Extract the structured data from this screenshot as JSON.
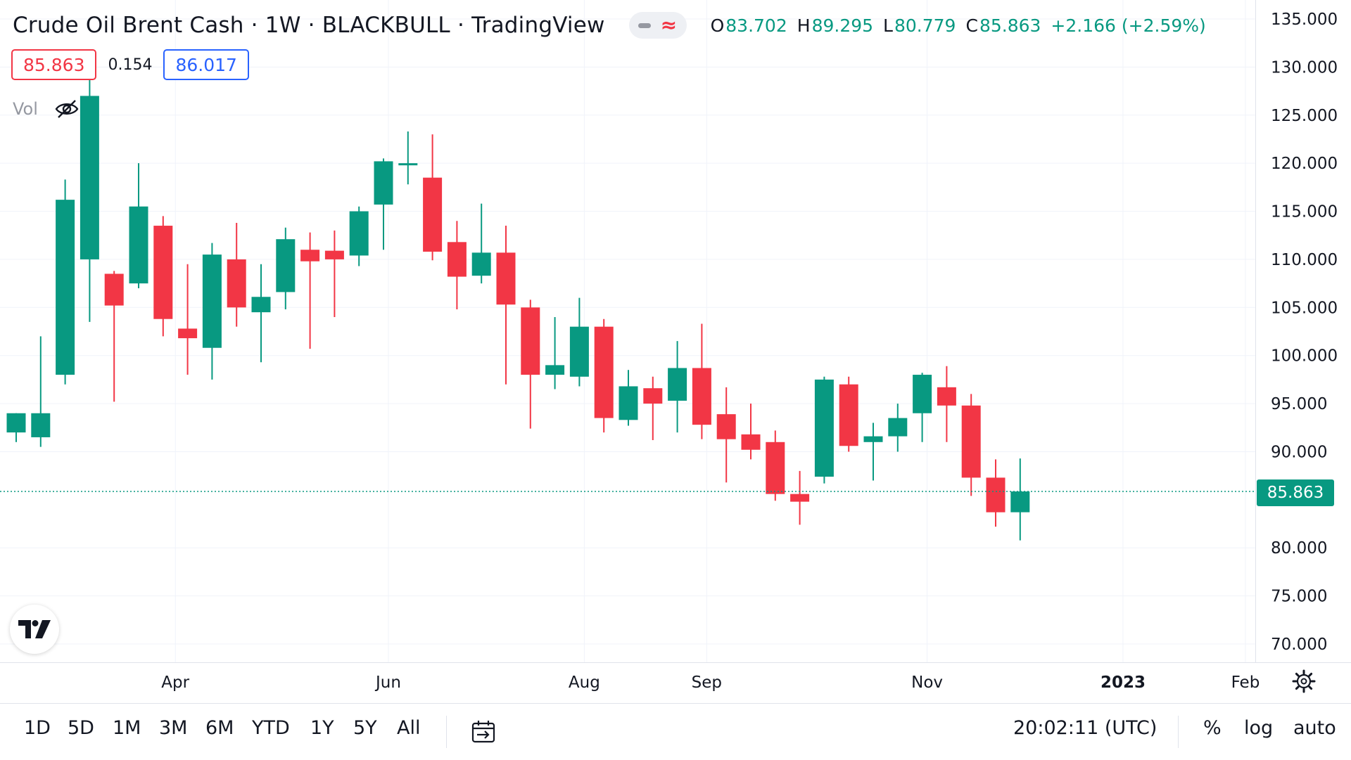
{
  "header": {
    "title": "Crude Oil Brent Cash · 1W · BLACKBULL · TradingView",
    "ohlc": {
      "o_label": "O",
      "o_value": "83.702",
      "h_label": "H",
      "h_value": "89.295",
      "l_label": "L",
      "l_value": "80.779",
      "c_label": "C",
      "c_value": "85.863",
      "change": "+2.166 (+2.59%)"
    }
  },
  "quote": {
    "bid": "85.863",
    "spread": "0.154",
    "ask": "86.017"
  },
  "volume": {
    "label": "Vol",
    "icon": "eye-crossed-icon"
  },
  "last_price_label": "85.863",
  "toolbar": {
    "ranges": [
      "1D",
      "5D",
      "1M",
      "3M",
      "6M",
      "YTD",
      "1Y",
      "5Y",
      "All"
    ],
    "time": "20:02:11 (UTC)",
    "percent_label": "%",
    "log_label": "log",
    "auto_label": "auto"
  },
  "colors": {
    "up": "#089981",
    "down": "#f23645",
    "grid": "#f0f3fa",
    "text": "#131722",
    "last_price_line": "#089981"
  },
  "chart_data": {
    "type": "candlestick",
    "ylim": [
      68,
      137
    ],
    "y_ticks": [
      135,
      130,
      125,
      120,
      115,
      110,
      105,
      100,
      95,
      90,
      80,
      75,
      70
    ],
    "y_tick_labels": [
      "135.000",
      "130.000",
      "125.000",
      "120.000",
      "115.000",
      "110.000",
      "105.000",
      "100.000",
      "95.000",
      "90.000",
      "80.000",
      "75.000",
      "70.000"
    ],
    "x_ticks": [
      {
        "label": "Apr",
        "at": 6.5,
        "bold": false
      },
      {
        "label": "Jun",
        "at": 15.2,
        "bold": false
      },
      {
        "label": "Aug",
        "at": 23.2,
        "bold": false
      },
      {
        "label": "Sep",
        "at": 28.2,
        "bold": false
      },
      {
        "label": "Nov",
        "at": 37.2,
        "bold": false
      },
      {
        "label": "2023",
        "at": 45.2,
        "bold": true
      },
      {
        "label": "Feb",
        "at": 50.2,
        "bold": false
      }
    ],
    "last_price": 85.863,
    "candles": [
      {
        "o": 92.0,
        "h": 94.0,
        "l": 91.0,
        "c": 94.0
      },
      {
        "o": 91.5,
        "h": 102.0,
        "l": 90.5,
        "c": 94.0
      },
      {
        "o": 98.0,
        "h": 118.3,
        "l": 97.0,
        "c": 116.2
      },
      {
        "o": 110.0,
        "h": 129.0,
        "l": 103.5,
        "c": 127.0
      },
      {
        "o": 108.5,
        "h": 108.8,
        "l": 95.2,
        "c": 105.2
      },
      {
        "o": 107.5,
        "h": 120.0,
        "l": 107.0,
        "c": 115.5
      },
      {
        "o": 113.5,
        "h": 114.5,
        "l": 102.0,
        "c": 103.8
      },
      {
        "o": 102.8,
        "h": 109.5,
        "l": 98.0,
        "c": 101.8
      },
      {
        "o": 100.8,
        "h": 111.7,
        "l": 97.5,
        "c": 110.5
      },
      {
        "o": 110.0,
        "h": 113.8,
        "l": 103.0,
        "c": 105.0
      },
      {
        "o": 104.5,
        "h": 109.5,
        "l": 99.3,
        "c": 106.1
      },
      {
        "o": 106.6,
        "h": 113.3,
        "l": 104.8,
        "c": 112.1
      },
      {
        "o": 111.0,
        "h": 112.8,
        "l": 100.7,
        "c": 109.8
      },
      {
        "o": 110.9,
        "h": 113.0,
        "l": 104.0,
        "c": 110.0
      },
      {
        "o": 110.4,
        "h": 115.5,
        "l": 109.3,
        "c": 115.0
      },
      {
        "o": 115.7,
        "h": 120.5,
        "l": 111.0,
        "c": 120.2
      },
      {
        "o": 120.0,
        "h": 123.3,
        "l": 117.8,
        "c": 120.0
      },
      {
        "o": 118.5,
        "h": 123.0,
        "l": 109.9,
        "c": 110.8
      },
      {
        "o": 111.8,
        "h": 114.0,
        "l": 104.8,
        "c": 108.2
      },
      {
        "o": 108.3,
        "h": 115.8,
        "l": 107.5,
        "c": 110.7
      },
      {
        "o": 110.7,
        "h": 113.5,
        "l": 97.0,
        "c": 105.3
      },
      {
        "o": 105.0,
        "h": 105.8,
        "l": 92.4,
        "c": 98.0
      },
      {
        "o": 98.0,
        "h": 104.0,
        "l": 96.5,
        "c": 99.0
      },
      {
        "o": 97.8,
        "h": 106.0,
        "l": 96.8,
        "c": 103.0
      },
      {
        "o": 103.0,
        "h": 103.8,
        "l": 92.0,
        "c": 93.5
      },
      {
        "o": 93.3,
        "h": 98.5,
        "l": 92.7,
        "c": 96.8
      },
      {
        "o": 96.6,
        "h": 97.8,
        "l": 91.2,
        "c": 95.0
      },
      {
        "o": 95.3,
        "h": 101.5,
        "l": 92.0,
        "c": 98.7
      },
      {
        "o": 98.7,
        "h": 103.3,
        "l": 91.3,
        "c": 92.8
      },
      {
        "o": 93.9,
        "h": 96.7,
        "l": 86.8,
        "c": 91.3
      },
      {
        "o": 91.8,
        "h": 95.0,
        "l": 89.2,
        "c": 90.2
      },
      {
        "o": 91.0,
        "h": 92.2,
        "l": 84.9,
        "c": 85.6
      },
      {
        "o": 85.6,
        "h": 88.0,
        "l": 82.4,
        "c": 84.8
      },
      {
        "o": 87.4,
        "h": 97.8,
        "l": 86.7,
        "c": 97.5
      },
      {
        "o": 97.0,
        "h": 97.8,
        "l": 90.0,
        "c": 90.6
      },
      {
        "o": 91.0,
        "h": 93.0,
        "l": 87.0,
        "c": 91.6
      },
      {
        "o": 91.6,
        "h": 95.0,
        "l": 90.0,
        "c": 93.5
      },
      {
        "o": 94.0,
        "h": 98.2,
        "l": 91.0,
        "c": 98.0
      },
      {
        "o": 96.7,
        "h": 98.9,
        "l": 91.0,
        "c": 94.8
      },
      {
        "o": 94.8,
        "h": 96.0,
        "l": 85.4,
        "c": 87.3
      },
      {
        "o": 87.3,
        "h": 89.2,
        "l": 82.2,
        "c": 83.7
      },
      {
        "o": 83.702,
        "h": 89.295,
        "l": 80.779,
        "c": 85.863
      }
    ]
  }
}
